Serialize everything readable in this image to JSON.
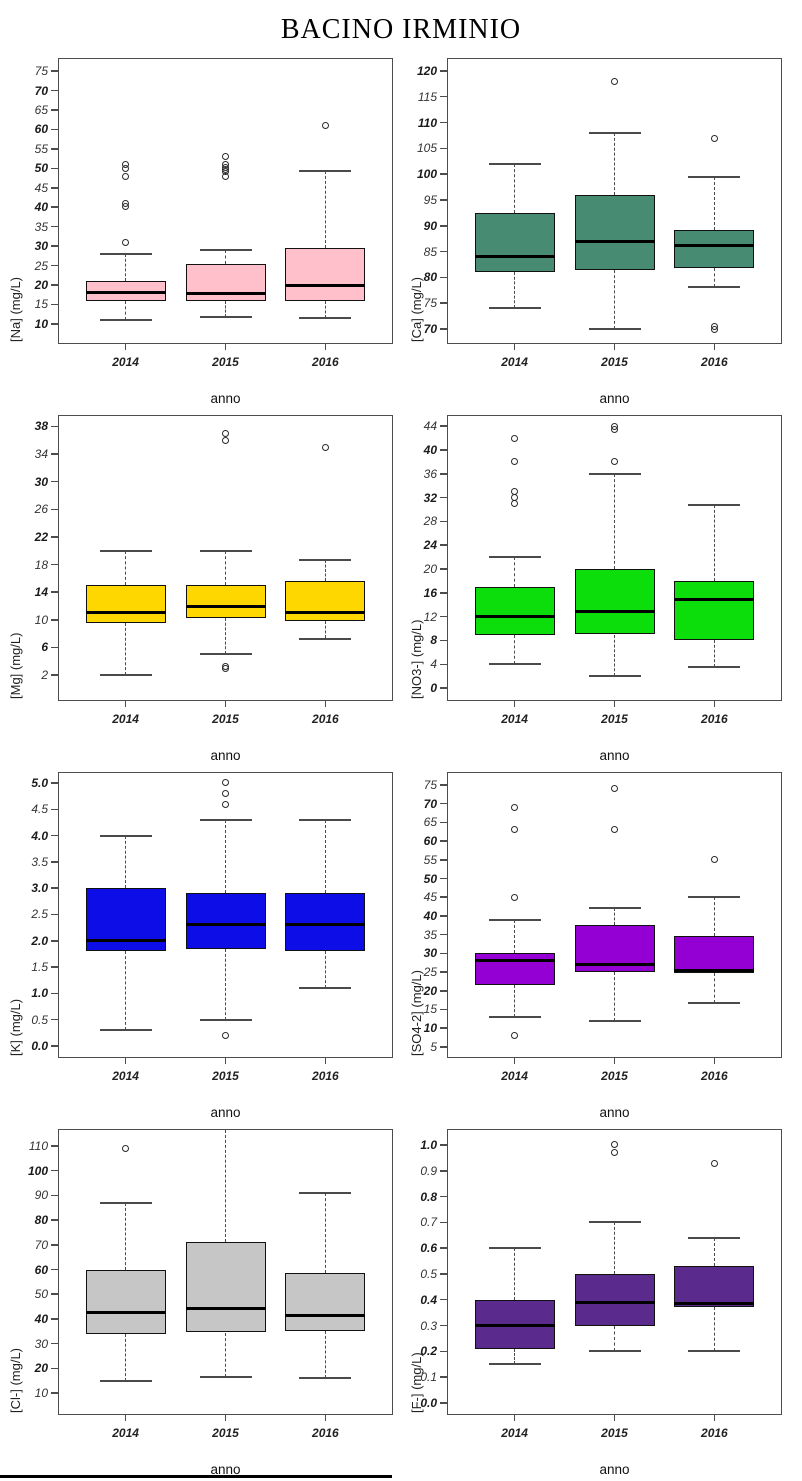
{
  "title": "BACINO IRMINIO",
  "xlabel": "anno",
  "categories": [
    "2014",
    "2015",
    "2016"
  ],
  "chart_data": [
    {
      "type": "box",
      "ylabel": "[Na] (mg/L)",
      "color": "#FFC0CB",
      "ylim": [
        5.1,
        78.1
      ],
      "ticks": [
        "10",
        "15",
        "20",
        "25",
        "30",
        "35",
        "40",
        "45",
        "50",
        "55",
        "60",
        "65",
        "70",
        "75"
      ],
      "groups": [
        {
          "category": "2014",
          "low": 11,
          "q1": 16,
          "median": 18,
          "q3": 21,
          "high": 28,
          "outliers": [
            31,
            40.3,
            41,
            48,
            50,
            51
          ]
        },
        {
          "category": "2015",
          "low": 11.7,
          "q1": 16,
          "median": 17.8,
          "q3": 25.4,
          "high": 29,
          "outliers": [
            48,
            49.3,
            49.8,
            50.3,
            51,
            53
          ]
        },
        {
          "category": "2016",
          "low": 11.5,
          "q1": 16,
          "median": 19.9,
          "q3": 29.6,
          "high": 49.3,
          "outliers": [
            61
          ]
        }
      ]
    },
    {
      "type": "box",
      "ylabel": "[Ca] (mg/L)",
      "color": "#478C72",
      "ylim": [
        67.3,
        122.3
      ],
      "ticks": [
        "70",
        "75",
        "80",
        "85",
        "90",
        "95",
        "100",
        "105",
        "110",
        "115",
        "120"
      ],
      "groups": [
        {
          "category": "2014",
          "low": 74,
          "q1": 81,
          "median": 84,
          "q3": 92.5,
          "high": 102,
          "outliers": []
        },
        {
          "category": "2015",
          "low": 70,
          "q1": 81.5,
          "median": 87,
          "q3": 96,
          "high": 108,
          "outliers": [
            118
          ]
        },
        {
          "category": "2016",
          "low": 78.2,
          "q1": 81.8,
          "median": 86.2,
          "q3": 89.2,
          "high": 99.5,
          "outliers": [
            107,
            70.5,
            70
          ]
        }
      ]
    },
    {
      "type": "box",
      "ylabel": "[Mg] (mg/L)",
      "color": "#FFD700",
      "ylim": [
        -1.6,
        39.5
      ],
      "ticks": [
        "2",
        "6",
        "10",
        "14",
        "18",
        "22",
        "26",
        "30",
        "34",
        "38"
      ],
      "groups": [
        {
          "category": "2014",
          "low": 2,
          "q1": 9.5,
          "median": 11,
          "q3": 15,
          "high": 20,
          "outliers": []
        },
        {
          "category": "2015",
          "low": 5,
          "q1": 10.3,
          "median": 12,
          "q3": 15,
          "high": 20,
          "outliers": [
            3,
            3.3,
            36,
            37
          ]
        },
        {
          "category": "2016",
          "low": 7.3,
          "q1": 9.9,
          "median": 11,
          "q3": 15.6,
          "high": 18.6,
          "outliers": [
            35
          ]
        }
      ]
    },
    {
      "type": "box",
      "ylabel": "[NO3-] (mg/L)",
      "color": "#0BDE0B",
      "ylim": [
        -2.0,
        45.7
      ],
      "ticks": [
        "0",
        "4",
        "8",
        "12",
        "16",
        "20",
        "24",
        "28",
        "32",
        "36",
        "40",
        "44"
      ],
      "groups": [
        {
          "category": "2014",
          "low": 4,
          "q1": 9,
          "median": 12,
          "q3": 17,
          "high": 22,
          "outliers": [
            31,
            32,
            33,
            38,
            42
          ]
        },
        {
          "category": "2015",
          "low": 2,
          "q1": 9,
          "median": 12.8,
          "q3": 20,
          "high": 36,
          "outliers": [
            38,
            43.5,
            44
          ]
        },
        {
          "category": "2016",
          "low": 3.5,
          "q1": 8,
          "median": 14.9,
          "q3": 18,
          "high": 30.8,
          "outliers": []
        }
      ]
    },
    {
      "type": "box",
      "ylabel": "[K] (mg/L)",
      "color": "#0D0DE8",
      "ylim": [
        -0.21,
        5.19
      ],
      "ticks": [
        "0.0",
        "0.5",
        "1.0",
        "1.5",
        "2.0",
        "2.5",
        "3.0",
        "3.5",
        "4.0",
        "4.5",
        "5.0"
      ],
      "groups": [
        {
          "category": "2014",
          "low": 0.3,
          "q1": 1.8,
          "median": 2.0,
          "q3": 3.0,
          "high": 4.0,
          "outliers": []
        },
        {
          "category": "2015",
          "low": 0.5,
          "q1": 1.85,
          "median": 2.3,
          "q3": 2.9,
          "high": 4.3,
          "outliers": [
            0.2,
            4.6,
            4.8,
            5.0
          ]
        },
        {
          "category": "2016",
          "low": 1.1,
          "q1": 1.8,
          "median": 2.3,
          "q3": 2.9,
          "high": 4.3,
          "outliers": []
        }
      ]
    },
    {
      "type": "box",
      "ylabel": "[SO4-2] (mg/L)",
      "color": "#9400D3",
      "ylim": [
        2.3,
        78.2
      ],
      "ticks": [
        "5",
        "10",
        "15",
        "20",
        "25",
        "30",
        "35",
        "40",
        "45",
        "50",
        "55",
        "60",
        "65",
        "70",
        "75"
      ],
      "groups": [
        {
          "category": "2014",
          "low": 13,
          "q1": 21.5,
          "median": 28,
          "q3": 30,
          "high": 39,
          "outliers": [
            8,
            45,
            63,
            69
          ]
        },
        {
          "category": "2015",
          "low": 12,
          "q1": 25,
          "median": 27,
          "q3": 37.5,
          "high": 42,
          "outliers": [
            63,
            74
          ]
        },
        {
          "category": "2016",
          "low": 16.7,
          "q1": 24.7,
          "median": 25.4,
          "q3": 34.6,
          "high": 45,
          "outliers": [
            55
          ]
        }
      ]
    },
    {
      "type": "box",
      "ylabel": "[Cl-] (mg/L)",
      "color": "#C6C6C6",
      "ylim": [
        1.5,
        116.5
      ],
      "ticks": [
        "10",
        "20",
        "30",
        "40",
        "50",
        "60",
        "70",
        "80",
        "90",
        "100",
        "110"
      ],
      "groups": [
        {
          "category": "2014",
          "low": 15,
          "q1": 34,
          "median": 42.8,
          "q3": 60,
          "high": 87,
          "outliers": [
            109
          ]
        },
        {
          "category": "2015",
          "low": 16.5,
          "q1": 34.5,
          "median": 44.3,
          "q3": 71,
          "high": null,
          "high_clipped": true,
          "outliers": []
        },
        {
          "category": "2016",
          "low": 16,
          "q1": 35,
          "median": 41.5,
          "q3": 58.5,
          "high": 91,
          "outliers": []
        }
      ]
    },
    {
      "type": "box",
      "ylabel": "[F-] (mg/L)",
      "color": "#5A2A8C",
      "ylim": [
        -0.043,
        1.058
      ],
      "ticks": [
        "0.0",
        "0.1",
        "0.2",
        "0.3",
        "0.4",
        "0.5",
        "0.6",
        "0.7",
        "0.8",
        "0.9",
        "1.0"
      ],
      "groups": [
        {
          "category": "2014",
          "low": 0.15,
          "q1": 0.21,
          "median": 0.3,
          "q3": 0.4,
          "high": 0.6,
          "outliers": []
        },
        {
          "category": "2015",
          "low": 0.2,
          "q1": 0.3,
          "median": 0.39,
          "q3": 0.5,
          "high": 0.7,
          "outliers": [
            0.97,
            1.0
          ]
        },
        {
          "category": "2016",
          "low": 0.2,
          "q1": 0.37,
          "median": 0.385,
          "q3": 0.53,
          "high": 0.64,
          "outliers": [
            0.93
          ]
        }
      ]
    }
  ]
}
